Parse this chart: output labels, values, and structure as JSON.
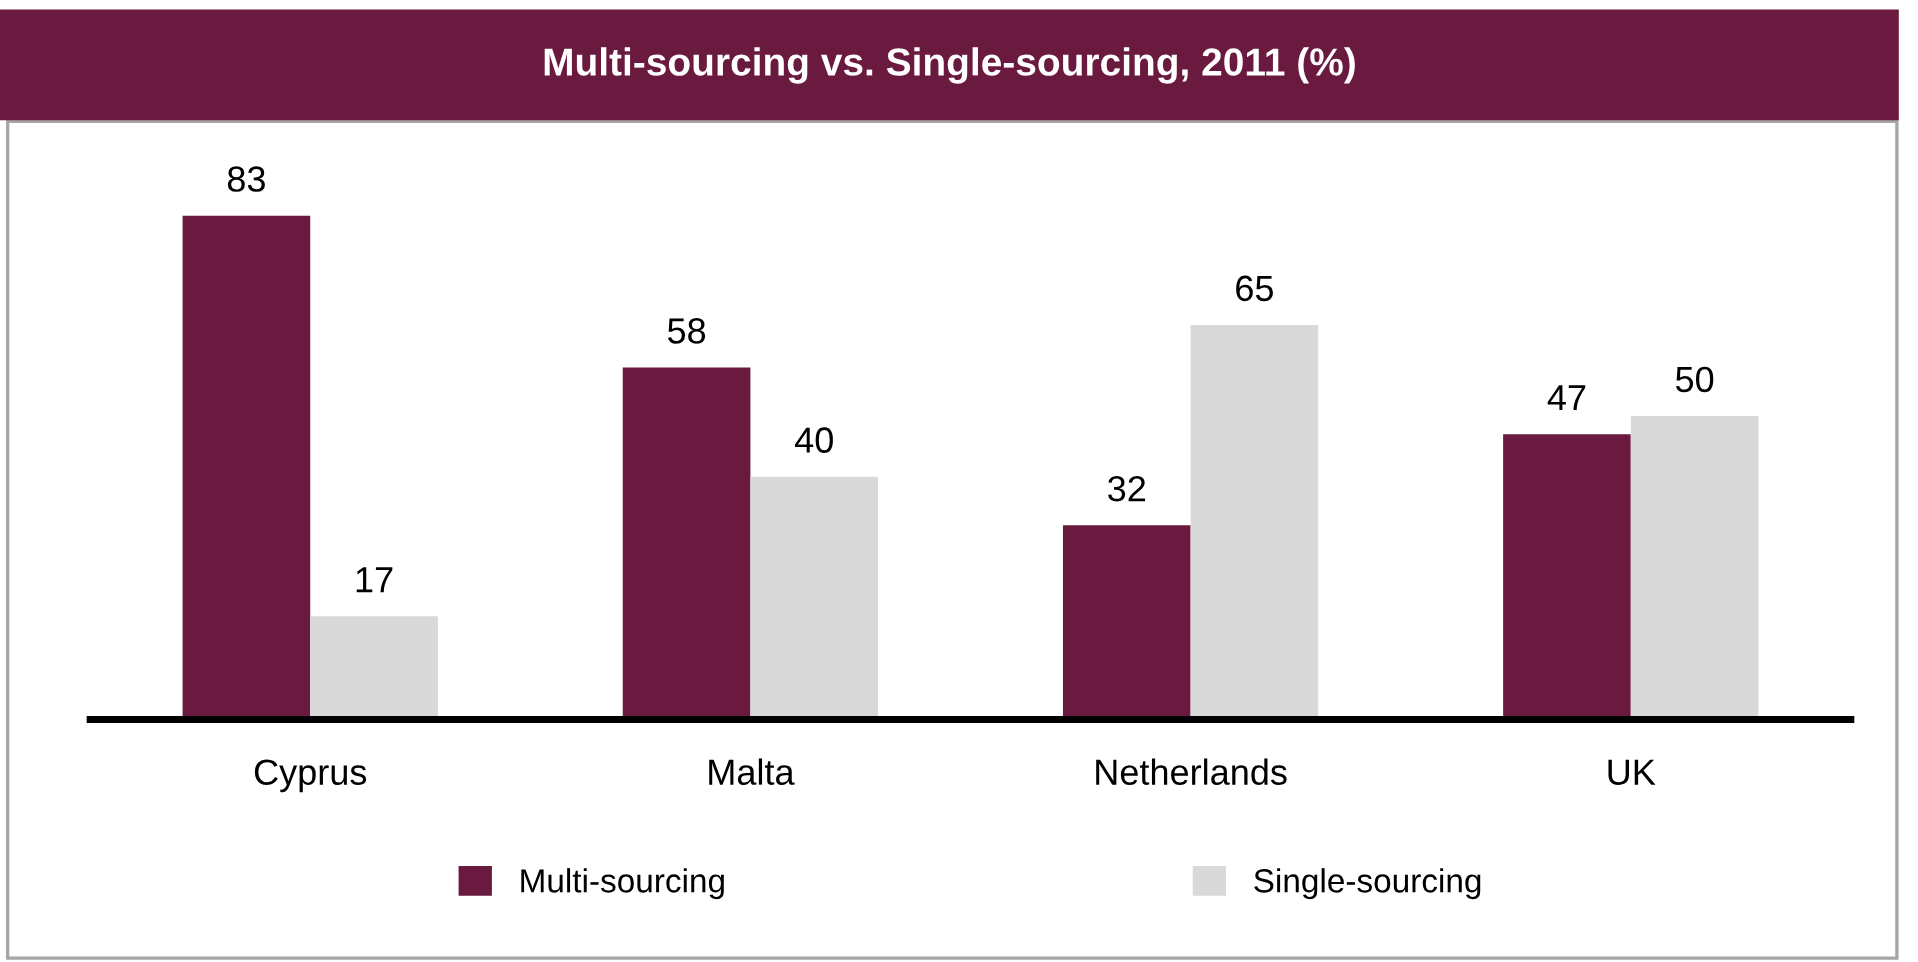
{
  "chart_data": {
    "type": "bar",
    "title": "Multi-sourcing vs. Single-sourcing, 2011 (%)",
    "categories": [
      "Cyprus",
      "Malta",
      "Netherlands",
      "UK"
    ],
    "series": [
      {
        "name": "Multi-sourcing",
        "color": "#6b1a3f",
        "values": [
          83,
          58,
          32,
          47
        ]
      },
      {
        "name": "Single-sourcing",
        "color": "#d9d9d9",
        "values": [
          17,
          40,
          65,
          50
        ]
      }
    ],
    "data_labels": true,
    "legend": "bottom",
    "grid": false
  }
}
